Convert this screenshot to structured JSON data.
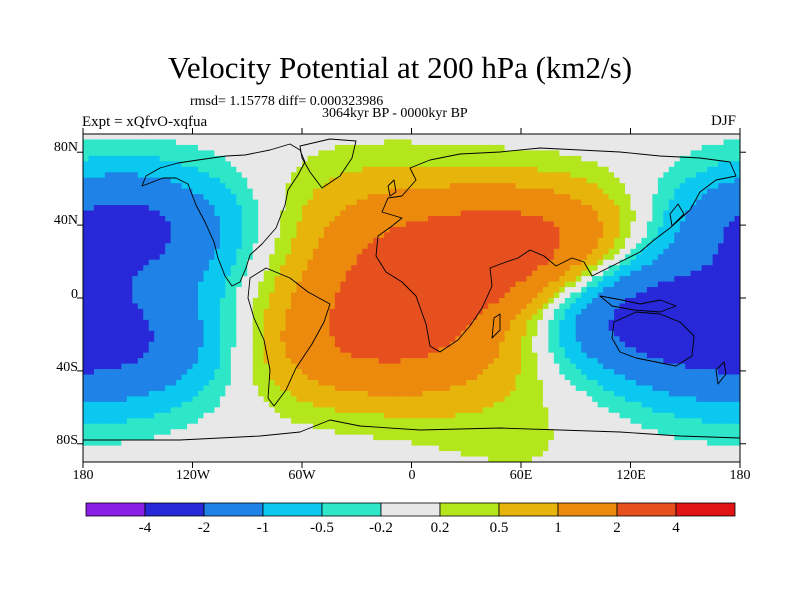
{
  "chart_data": {
    "type": "heatmap",
    "title": "Velocity Potential at 200 hPa (km2/s)",
    "stats_line": "rmsd= 1.15778 diff= 0.000323986",
    "period_line": "3064kyr BP - 0000kyr BP",
    "left_header": "Expt = xQfvO-xqfua",
    "right_header": "DJF",
    "x_axis": {
      "range": [
        -180,
        180
      ],
      "ticks": [
        -180,
        -120,
        -60,
        0,
        60,
        120,
        180
      ],
      "tick_labels": [
        "180",
        "120W",
        "60W",
        "0",
        "60E",
        "120E",
        "180"
      ]
    },
    "y_axis": {
      "range": [
        -90,
        90
      ],
      "ticks": [
        80,
        40,
        0,
        -40,
        -80
      ],
      "tick_labels": [
        "80N",
        "40N",
        "0",
        "40S",
        "80S"
      ]
    },
    "colorbar": {
      "labels": [
        "-4",
        "-2",
        "-1",
        "-0.5",
        "-0.2",
        "0.2",
        "0.5",
        "1",
        "2",
        "4"
      ],
      "colors": [
        "#8a1ee6",
        "#2828d8",
        "#1e82e6",
        "#0ac8f0",
        "#2ee6c8",
        "#e8e8e8",
        "#b4e61e",
        "#e6b40a",
        "#ec8a0e",
        "#e6501e",
        "#e01414"
      ]
    },
    "anomaly_centers": [
      {
        "lon": 65,
        "lat": 30,
        "value": 2.2
      },
      {
        "lon": 5,
        "lat": 10,
        "value": 2.1
      },
      {
        "lon": -38,
        "lat": -25,
        "value": 1.4
      },
      {
        "lon": -20,
        "lat": 48,
        "value": 0.7
      },
      {
        "lon": 20,
        "lat": -30,
        "value": 0.9
      },
      {
        "lon": 128,
        "lat": -8,
        "value": -2.4
      },
      {
        "lon": -158,
        "lat": 38,
        "value": -2.4
      },
      {
        "lon": -150,
        "lat": -22,
        "value": -1.5
      },
      {
        "lon": 172,
        "lat": -40,
        "value": -0.8
      },
      {
        "lon": 60,
        "lat": -80,
        "value": 0.2
      }
    ]
  }
}
